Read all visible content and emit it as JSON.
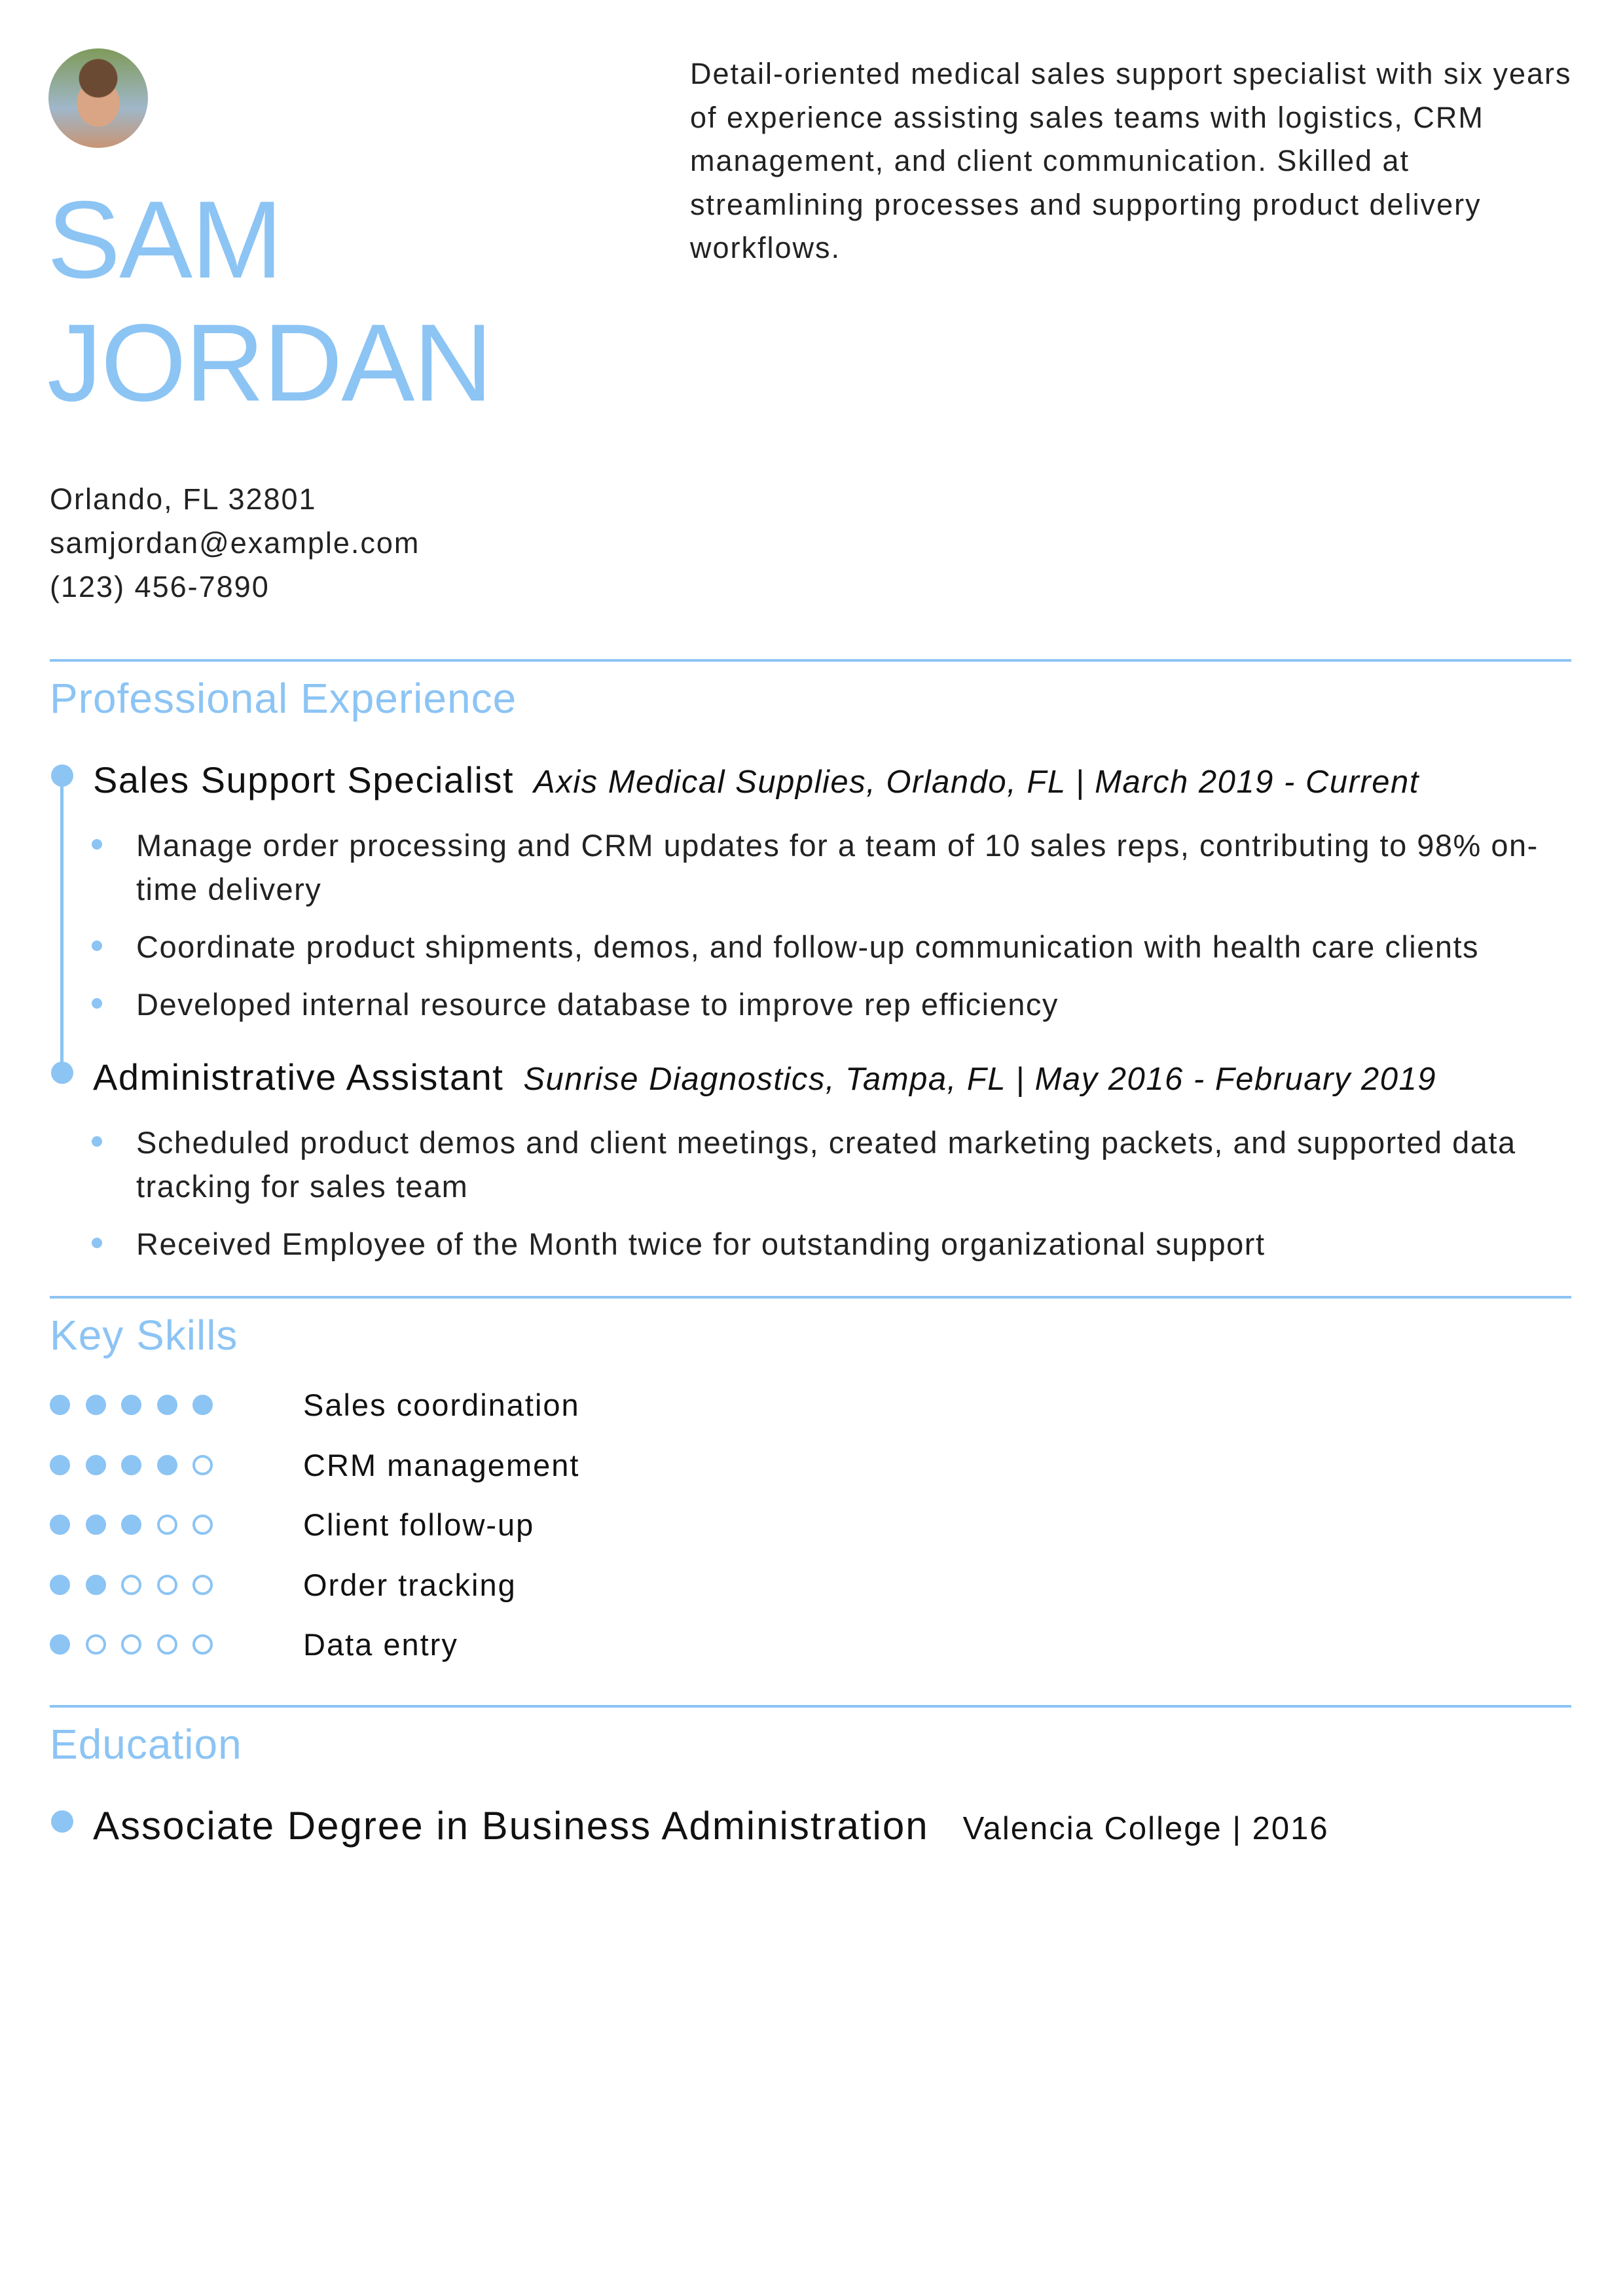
{
  "header": {
    "first_name": "SAM",
    "last_name": "JORDAN",
    "photo_icon": "avatar-photo",
    "summary": "Detail-oriented medical sales support specialist with six years of experience assisting sales teams with logistics, CRM management, and client communication. Skilled at streamlining processes and supporting product delivery workflows."
  },
  "contact": {
    "location": "Orlando, FL 32801",
    "email": "samjordan@example.com",
    "phone": "(123) 456-7890"
  },
  "experience": {
    "heading": "Professional Experience",
    "jobs": [
      {
        "title": "Sales Support Specialist",
        "company": "Axis Medical Supplies, Orlando, FL | March 2019 - Current",
        "bullets": [
          "Manage order processing and CRM updates for a team of 10 sales reps, contributing to 98% on-time delivery",
          "Coordinate product shipments, demos, and follow-up communication with health care clients",
          "Developed internal resource database to improve rep efficiency"
        ]
      },
      {
        "title": "Administrative Assistant",
        "company": "Sunrise Diagnostics, Tampa, FL | May 2016 - February 2019",
        "bullets": [
          "Scheduled product demos and client meetings, created marketing packets, and supported data tracking for sales team",
          "Received Employee of the Month twice for outstanding organizational support"
        ]
      }
    ]
  },
  "skills": {
    "heading": "Key Skills",
    "max_rating": 5,
    "items": [
      {
        "label": "Sales coordination",
        "rating": 5
      },
      {
        "label": "CRM management",
        "rating": 4
      },
      {
        "label": "Client follow-up",
        "rating": 3
      },
      {
        "label": "Order tracking",
        "rating": 2
      },
      {
        "label": "Data entry",
        "rating": 1
      }
    ]
  },
  "education": {
    "heading": "Education",
    "degree": "Associate Degree in Business Administration",
    "school": "Valencia College | 2016"
  },
  "colors": {
    "accent": "#8cc4f4",
    "text": "#111111"
  }
}
